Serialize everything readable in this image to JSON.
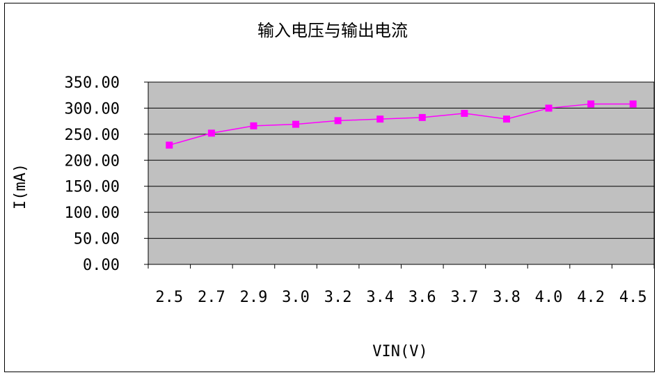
{
  "chart_data": {
    "type": "line",
    "title": "输入电压与输出电流",
    "xlabel": "VIN(V)",
    "ylabel": "I(mA)",
    "categories": [
      "2.5",
      "2.7",
      "2.9",
      "3.0",
      "3.2",
      "3.4",
      "3.6",
      "3.7",
      "3.8",
      "4.0",
      "4.2",
      "4.5"
    ],
    "series": [
      {
        "values": [
          229,
          252,
          266,
          269,
          276,
          279,
          282,
          290,
          279,
          300,
          308,
          308
        ]
      }
    ],
    "ylim": [
      0,
      350
    ],
    "yticks": [
      "0.00",
      "50.00",
      "100.00",
      "150.00",
      "200.00",
      "250.00",
      "300.00",
      "350.00"
    ],
    "grid": true,
    "legend": "none",
    "colors": {
      "series": "#ff00ff",
      "plot_bg": "#c0c0c0",
      "grid": "#000000"
    }
  }
}
